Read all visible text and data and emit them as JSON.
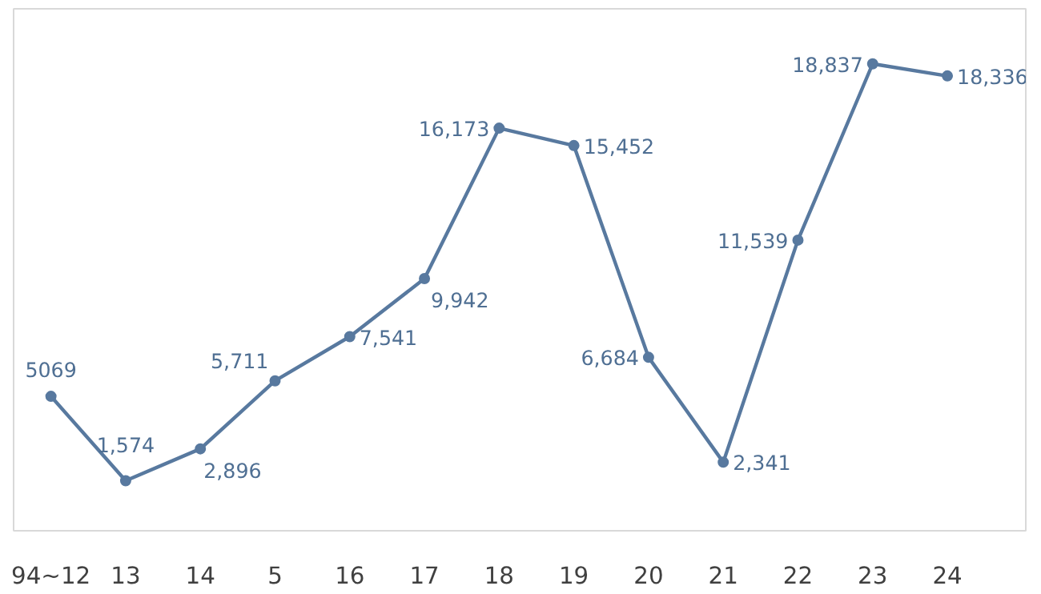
{
  "chart_data": {
    "type": "line",
    "categories": [
      "94~12",
      "13",
      "14",
      "5",
      "16",
      "17",
      "18",
      "19",
      "20",
      "21",
      "22",
      "23",
      "24"
    ],
    "series": [
      {
        "color": "#58799f",
        "values": [
          5069,
          1574,
          2896,
          5711,
          7541,
          9942,
          16173,
          15452,
          6684,
          2341,
          11539,
          18837,
          18336
        ],
        "value_labels": [
          "5069",
          "1,574",
          "2,896",
          "5,711",
          "7,541",
          "9,942",
          "16,173",
          "15,452",
          "6,684",
          "2,341",
          "11,539",
          "18,837",
          "18,336"
        ]
      }
    ],
    "marker": "circle",
    "line_style": "solid",
    "grid": false
  }
}
